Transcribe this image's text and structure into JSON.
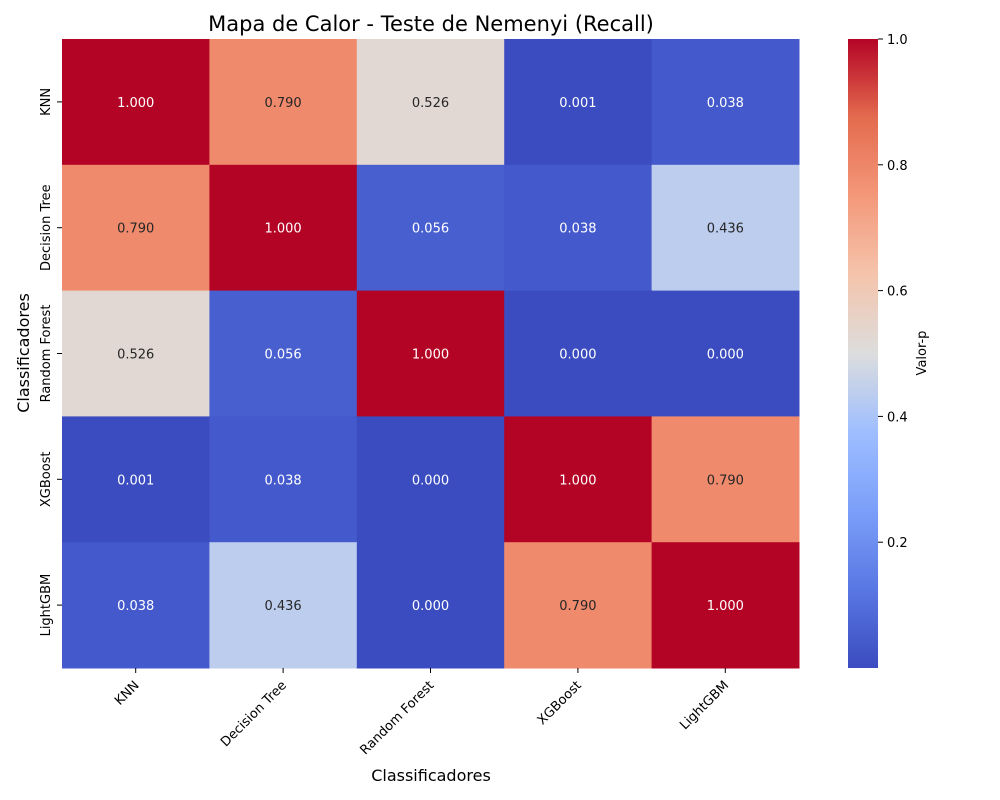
{
  "chart_data": {
    "type": "heatmap",
    "title": "Mapa de Calor - Teste de Nemenyi (Recall)",
    "xlabel": "Classificadores",
    "ylabel": "Classificadores",
    "x_categories": [
      "KNN",
      "Decision Tree",
      "Random Forest",
      "XGBoost",
      "LightGBM"
    ],
    "y_categories": [
      "KNN",
      "Decision Tree",
      "Random Forest",
      "XGBoost",
      "LightGBM"
    ],
    "values": [
      [
        1.0,
        0.79,
        0.526,
        0.001,
        0.038
      ],
      [
        0.79,
        1.0,
        0.056,
        0.038,
        0.436
      ],
      [
        0.526,
        0.056,
        1.0,
        0.0,
        0.0
      ],
      [
        0.001,
        0.038,
        0.0,
        1.0,
        0.79
      ],
      [
        0.038,
        0.436,
        0.0,
        0.79,
        1.0
      ]
    ],
    "value_format_decimals": 3,
    "colormap": "coolwarm",
    "colorbar": {
      "label": "Valor-p",
      "range": [
        0.0,
        1.0
      ],
      "ticks": [
        "0.2",
        "0.4",
        "0.6",
        "0.8",
        "1.0"
      ]
    }
  }
}
